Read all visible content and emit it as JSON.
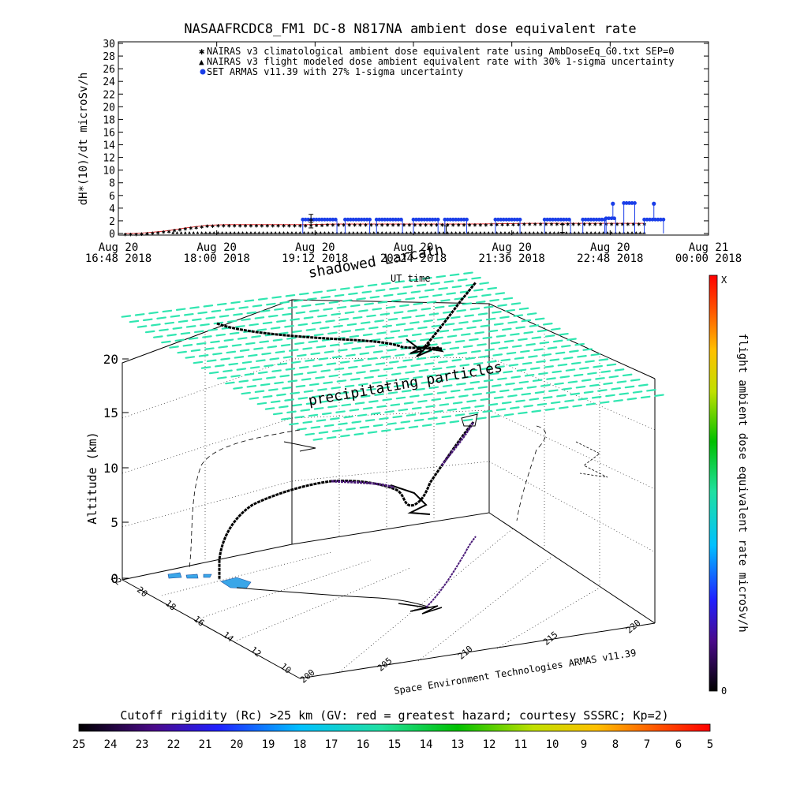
{
  "header": {
    "title": "NASAAFRCDC8_FM1 DC-8   N817NA ambient dose equivalent rate"
  },
  "chart_data": [
    {
      "type": "line",
      "title": "NASAAFRCDC8_FM1 DC-8   N817NA ambient dose equivalent rate",
      "ylabel": "dH*(10)/dt microSv/h",
      "xlabel": "",
      "ylim": [
        0,
        30
      ],
      "y_ticks": [
        "0",
        "2",
        "4",
        "6",
        "8",
        "10",
        "12",
        "14",
        "16",
        "18",
        "20",
        "22",
        "24",
        "26",
        "28",
        "30"
      ],
      "x_ticks": [
        {
          "date": "Aug 20",
          "time": "16:48 2018"
        },
        {
          "date": "Aug 20",
          "time": "18:00 2018"
        },
        {
          "date": "Aug 20",
          "time": "19:12 2018"
        },
        {
          "date": "Aug 20",
          "time": "20:24 2018"
        },
        {
          "date": "Aug 20",
          "time": "21:36 2018"
        },
        {
          "date": "Aug 20",
          "time": "22:48 2018"
        },
        {
          "date": "Aug 21",
          "time": "00:00 2018"
        }
      ],
      "x_range": [
        "2018-08-20 16:48",
        "2018-08-21 00:00"
      ],
      "legend_position": "top-right",
      "series": [
        {
          "name": "NAIRAS v3 climatological ambient dose equivalent rate using AmbDoseEq_G0.txt SEP=0",
          "color": "#e03030",
          "marker": "asterisk",
          "x_minutes_after_1648": [
            0,
            10,
            20,
            35,
            50,
            65,
            80,
            95,
            110,
            125,
            140,
            160,
            180,
            220,
            260,
            300,
            340,
            380,
            400
          ],
          "values": [
            0.0,
            0.0,
            0.1,
            0.4,
            0.9,
            1.3,
            1.4,
            1.4,
            1.4,
            1.4,
            1.4,
            1.5,
            1.5,
            1.5,
            1.5,
            1.6,
            1.6,
            1.6,
            1.6
          ]
        },
        {
          "name": "NAIRAS v3 flight modeled dose ambient equivalent rate with 30% 1-sigma uncertainty",
          "color": "#000000",
          "marker": "triangle",
          "x_minutes_after_1648": [
            0,
            100,
            200,
            300,
            400
          ],
          "values": [
            0.0,
            0.1,
            0.1,
            0.1,
            0.1
          ]
        },
        {
          "name": "SET ARMAS v11.39 with 27% 1-sigma uncertainty",
          "color": "#1a3ee8",
          "marker": "circle",
          "segments": [
            {
              "start_min": 135,
              "end_min": 160,
              "value": 2.2
            },
            {
              "start_min": 166,
              "end_min": 184,
              "value": 2.2
            },
            {
              "start_min": 189,
              "end_min": 208,
              "value": 2.2
            },
            {
              "start_min": 216,
              "end_min": 234,
              "value": 2.2
            },
            {
              "start_min": 239,
              "end_min": 255,
              "value": 2.2
            },
            {
              "start_min": 276,
              "end_min": 294,
              "value": 2.2
            },
            {
              "start_min": 312,
              "end_min": 331,
              "value": 2.2
            },
            {
              "start_min": 340,
              "end_min": 356,
              "value": 2.2
            },
            {
              "start_min": 357,
              "end_min": 364,
              "value": 2.4
            },
            {
              "start_min": 370,
              "end_min": 378,
              "value": 4.8
            },
            {
              "start_min": 385,
              "end_min": 399,
              "value": 2.2
            }
          ],
          "spikes": [
            {
              "at_min": 362,
              "value": 4.7
            },
            {
              "at_min": 392,
              "value": 4.7
            }
          ],
          "baseline": 0.0
        }
      ]
    },
    {
      "type": "scatter",
      "title": "",
      "zlabel": "Altitude (km)",
      "xlabel": "Space Environment Technologies ARMAS v11.39",
      "z_ticks": [
        "0",
        "5",
        "10",
        "15",
        "20"
      ],
      "lon_ticks": [
        "200",
        "205",
        "210",
        "215",
        "220"
      ],
      "lat_ticks": [
        "10",
        "12",
        "14",
        "16",
        "18",
        "20",
        "22"
      ],
      "annotations": [
        "shadowed Larcath",
        "UT time",
        "precipitating particles"
      ],
      "colorbar_right": {
        "label": "flight ambient dose equivalent rate microSv/h",
        "top": "X",
        "bottom": "0"
      },
      "colorbar_bottom": {
        "label": "Cutoff rigidity (Rc) >25 km (GV: red = greatest hazard; courtesy SSSRC; Kp=2)",
        "ticks": [
          "25",
          "24",
          "23",
          "22",
          "21",
          "20",
          "19",
          "18",
          "17",
          "16",
          "15",
          "14",
          "13",
          "12",
          "11",
          "10",
          "9",
          "8",
          "7",
          "6",
          "5"
        ]
      }
    }
  ],
  "colors": {
    "grid_dashes": "#2fe6b0",
    "track": "#000000",
    "track_purple": "#4a1a78",
    "surface_patch": "#3aa6e8"
  }
}
